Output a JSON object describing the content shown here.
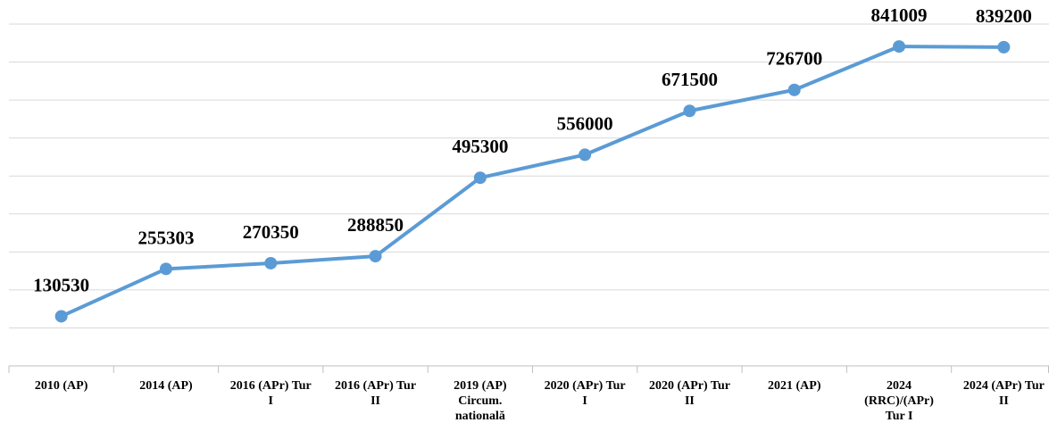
{
  "chart_data": {
    "type": "line",
    "categories": [
      "2010 (AP)",
      "2014 (AP)",
      "2016 (APr) Tur I",
      "2016 (APr) Tur II",
      "2019 (AP) Circum. natională",
      "2020 (APr) Tur I",
      "2020 (APr) Tur II",
      "2021 (AP)",
      "2024 (RRC)/(APr) Tur I",
      "2024 (APr) Tur II"
    ],
    "series": [
      {
        "color": "#5b9bd5",
        "values": [
          130530,
          255303,
          270350,
          288850,
          495300,
          556000,
          671500,
          726700,
          841009,
          839200
        ]
      }
    ],
    "ylim": [
      0,
      900000
    ],
    "yticks": [
      0,
      100000,
      200000,
      300000,
      400000,
      500000,
      600000,
      700000,
      800000,
      900000
    ],
    "grid": true
  }
}
